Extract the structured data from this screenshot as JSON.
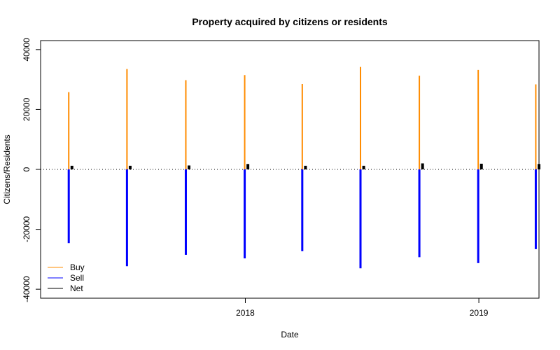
{
  "chart_data": {
    "type": "bar",
    "title": "Property acquired by citizens or residents",
    "xlabel": "Date",
    "ylabel": "Citizens/Residents",
    "ylim": [
      -43000,
      43000
    ],
    "xlim": [
      "2017-02-15",
      "2019-04-05"
    ],
    "y_ticks": [
      -40000,
      -20000,
      0,
      20000,
      40000
    ],
    "y_tick_labels": [
      "-40000",
      "-20000",
      "0",
      "20000",
      "40000"
    ],
    "x_ticks": [
      "2018-01-01",
      "2019-01-01"
    ],
    "x_tick_labels": [
      "2018",
      "2019"
    ],
    "zero_line": "dotted",
    "grid": false,
    "legend_position": "bottom-left",
    "series": [
      {
        "name": "Buy",
        "color": "#FF8C00",
        "x": [
          "2017-03-31",
          "2017-06-30",
          "2017-09-30",
          "2017-12-31",
          "2018-03-31",
          "2018-06-30",
          "2018-09-30",
          "2018-12-31",
          "2019-03-31"
        ],
        "values": [
          25800,
          33500,
          29800,
          31500,
          28500,
          34200,
          31300,
          33200,
          28400
        ]
      },
      {
        "name": "Sell",
        "color": "#0000FF",
        "x": [
          "2017-03-31",
          "2017-06-30",
          "2017-09-30",
          "2017-12-31",
          "2018-03-31",
          "2018-06-30",
          "2018-09-30",
          "2018-12-31",
          "2019-03-31"
        ],
        "values": [
          -24600,
          -32300,
          -28500,
          -29700,
          -27300,
          -33000,
          -29300,
          -31300,
          -26600
        ]
      },
      {
        "name": "Net",
        "color": "#000000",
        "x": [
          "2017-03-31",
          "2017-06-30",
          "2017-09-30",
          "2017-12-31",
          "2018-03-31",
          "2018-06-30",
          "2018-09-30",
          "2018-12-31",
          "2019-03-31"
        ],
        "values": [
          1200,
          1200,
          1300,
          1800,
          1200,
          1200,
          2000,
          1900,
          1800
        ]
      }
    ]
  }
}
